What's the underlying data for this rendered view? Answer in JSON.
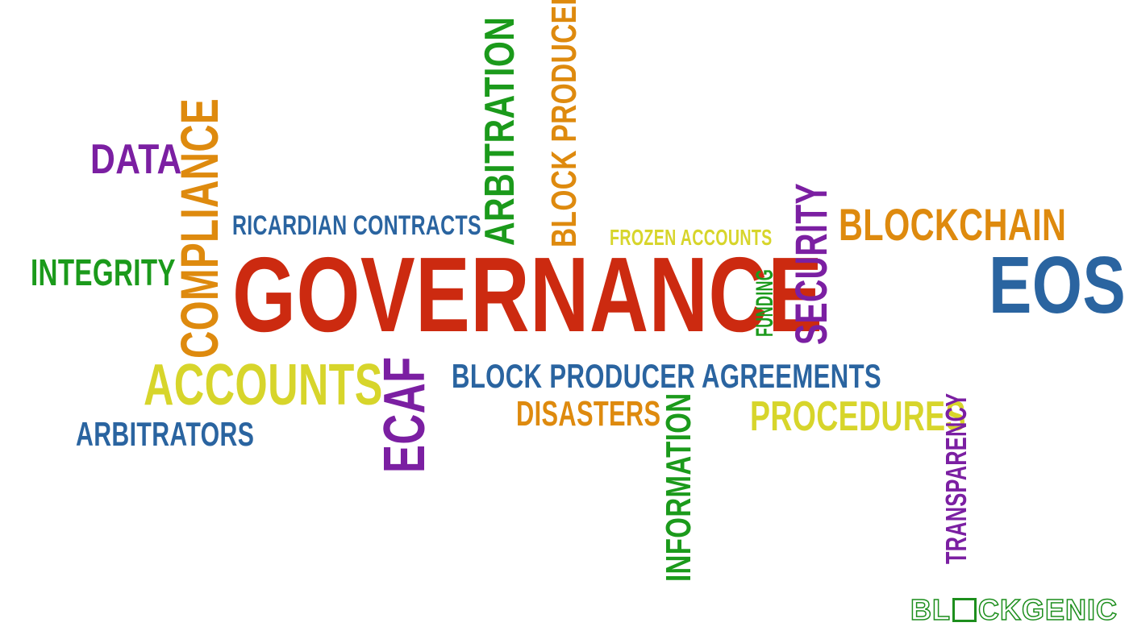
{
  "words": {
    "governance": "GOVERNANCE",
    "data": "DATA",
    "compliance": "COMPLIANCE",
    "ricardian_contracts": "RICARDIAN CONTRACTS",
    "arbitration": "ARBITRATION",
    "block_producers": "BLOCK PRODUCERS",
    "frozen_accounts": "FROZEN ACCOUNTS",
    "security": "SECURITY",
    "blockchain": "BLOCKCHAIN",
    "eos": "EOS",
    "integrity": "INTEGRITY",
    "funding": "FUNDING",
    "accounts": "ACCOUNTS",
    "ecaf": "ECAF",
    "block_producer_agreements": "BLOCK PRODUCER AGREEMENTS",
    "disasters": "DISASTERS",
    "information": "INFORMATION",
    "procedures": "PROCEDURES",
    "transparency": "TRANSPARENCY",
    "arbitrators": "ARBITRATORS"
  },
  "logo": {
    "prefix": "BL",
    "suffix": "CKGENIC"
  },
  "colors": {
    "purple": "#7b1fa2",
    "orange": "#de8a0e",
    "blue": "#2a64a0",
    "green": "#1b9a1b",
    "red": "#cc2a10",
    "yellow": "#d7d52b",
    "logo_green": "#1d8e1d"
  }
}
